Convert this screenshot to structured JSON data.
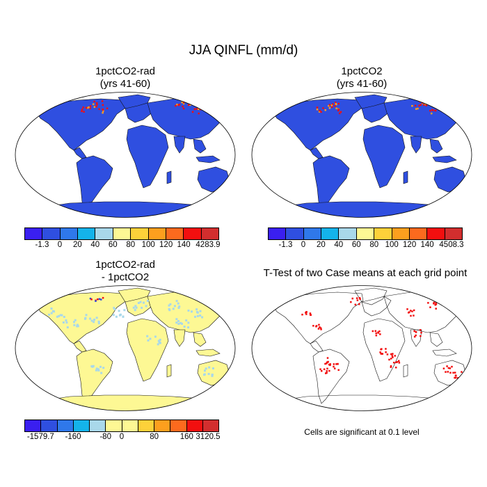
{
  "title": "JJA QINFL (mm/d)",
  "panels": [
    {
      "title_line1": "1pctCO2-rad",
      "title_line2": "(yrs 41-60)",
      "field": "absolute"
    },
    {
      "title_line1": "1pctCO2",
      "title_line2": "(yrs 41-60)",
      "field": "absolute"
    },
    {
      "title_line1": "1pctCO2-rad",
      "title_line2": "- 1pctCO2",
      "field": "difference"
    },
    {
      "title_line1": "T-Test of two Case means at each grid point",
      "title_line2": "",
      "field": "significance"
    }
  ],
  "colorbars": [
    {
      "colors": [
        "#3a1ff0",
        "#2f4fe0",
        "#2f78ea",
        "#14b3ea",
        "#a9d8ea",
        "#fdf894",
        "#fdd13a",
        "#fd9f1e",
        "#fc6a1e",
        "#f20f0f",
        "#d22e2e"
      ],
      "labels": [
        "-1.3",
        "0",
        "20",
        "40",
        "60",
        "80",
        "100",
        "120",
        "140",
        "4283.9"
      ]
    },
    {
      "colors": [
        "#3a1ff0",
        "#2f4fe0",
        "#2f78ea",
        "#14b3ea",
        "#a9d8ea",
        "#fdf894",
        "#fdd13a",
        "#fd9f1e",
        "#fc6a1e",
        "#f20f0f",
        "#d22e2e"
      ],
      "labels": [
        "-1.3",
        "0",
        "20",
        "40",
        "60",
        "80",
        "100",
        "120",
        "140",
        "4508.3"
      ]
    },
    {
      "colors": [
        "#3a1ff0",
        "#2f4fe0",
        "#2f78ea",
        "#14b3ea",
        "#a9d8ea",
        "#fdf894",
        "#fdf894",
        "#fdd13a",
        "#fd9f1e",
        "#fc6a1e",
        "#f20f0f",
        "#d22e2e"
      ],
      "labels": [
        "-1579.7",
        "-160",
        "-80",
        "0",
        "80",
        "160",
        "3120.5"
      ]
    }
  ],
  "significance_note": "Cells are significant at 0.1 level",
  "colors": {
    "land_absolute": "#2f4fe0",
    "land_high": "#f20f0f",
    "land_diff": "#fdf894",
    "land_diff_alt": "#a9d8ea",
    "significant": "#f20f0f"
  }
}
